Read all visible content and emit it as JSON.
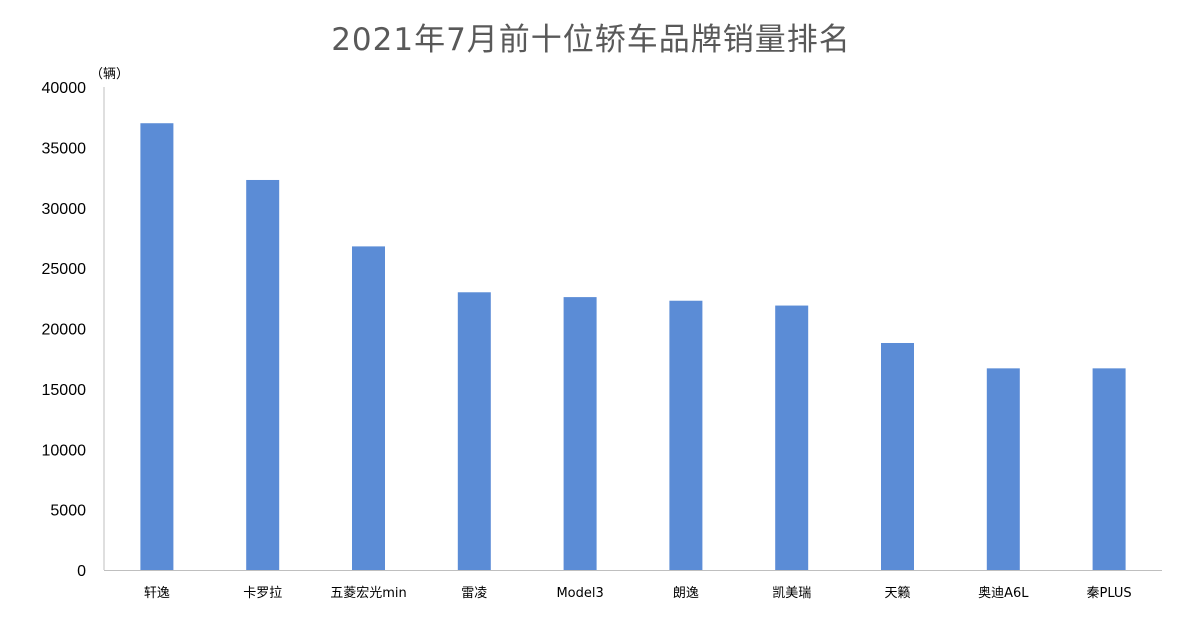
{
  "chart_data": {
    "type": "bar",
    "title": "2021年7月前十位轿车品牌销量排名",
    "ylabel": "（辆）",
    "xlabel": "",
    "categories": [
      "轩逸",
      "卡罗拉",
      "五菱宏光min",
      "雷凌",
      "Model3",
      "朗逸",
      "凯美瑞",
      "天籁",
      "奥迪A6L",
      "秦PLUS"
    ],
    "values": [
      37000,
      32300,
      26800,
      23000,
      22600,
      22300,
      21900,
      18800,
      16700,
      16700
    ],
    "ylim": [
      0,
      40000
    ],
    "yticks": [
      0,
      5000,
      10000,
      15000,
      20000,
      25000,
      30000,
      35000,
      40000
    ],
    "grid": false,
    "legend": "none",
    "bar_color": "#5B8CD6"
  }
}
